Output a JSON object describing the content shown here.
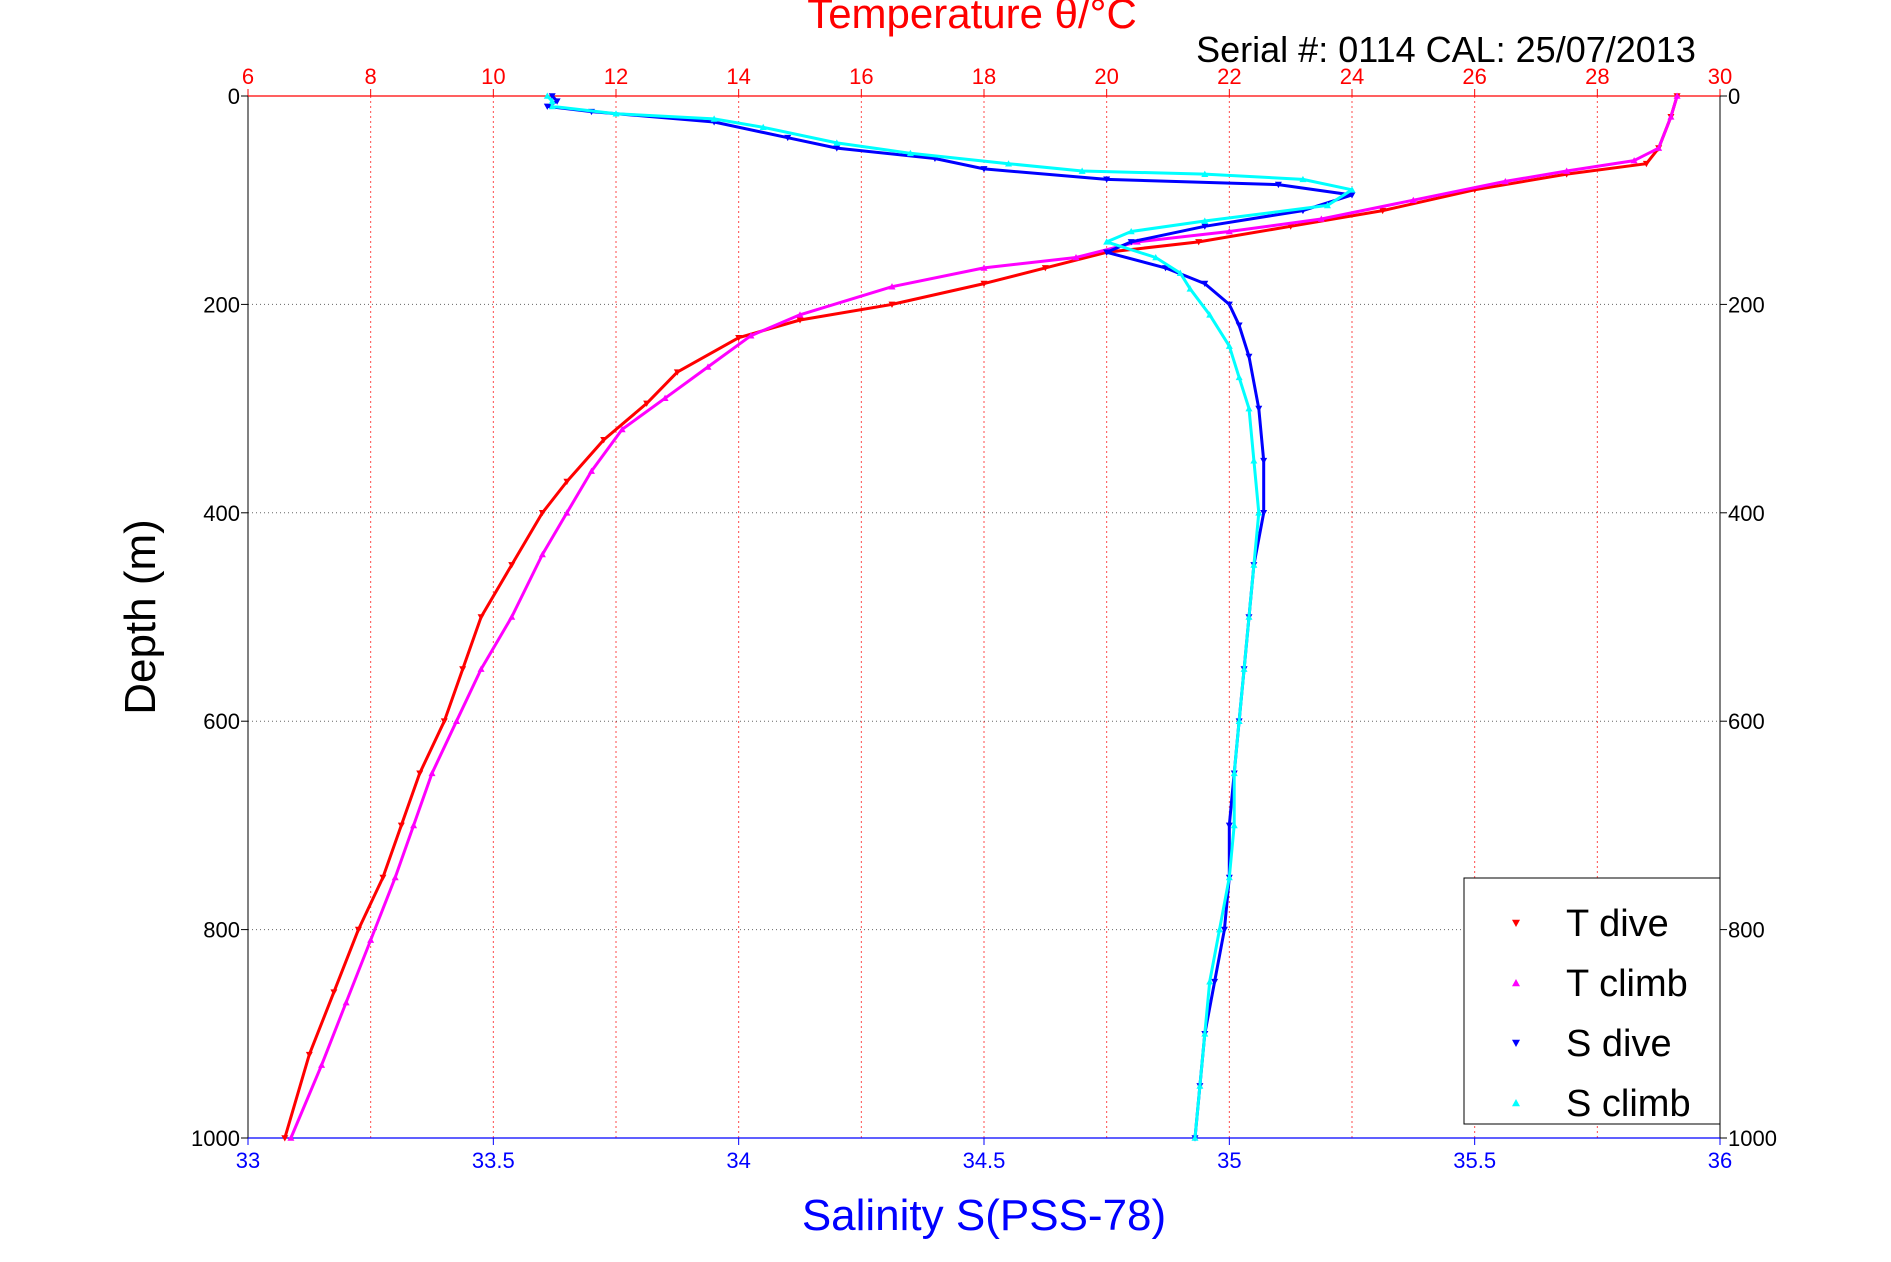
{
  "chart_data": {
    "type": "scatter",
    "title": "Temperature θ/°C",
    "subtitle": "Serial #: 0114  CAL: 25/07/2013",
    "ylabel": "Depth (m)",
    "xlabel": "Salinity S(PSS-78)",
    "ylim": [
      1000,
      0
    ],
    "temperature_axis": {
      "label": "Temperature θ/°C",
      "range": [
        6,
        30
      ],
      "ticks": [
        6,
        8,
        10,
        12,
        14,
        16,
        18,
        20,
        22,
        24,
        26,
        28,
        30
      ],
      "color": "#ff0000"
    },
    "salinity_axis": {
      "label": "Salinity S(PSS-78)",
      "range": [
        33,
        36
      ],
      "ticks": [
        "33",
        "33.5",
        "34",
        "34.5",
        "35",
        "35.5",
        "36"
      ],
      "color": "#0000ff"
    },
    "depth_ticks": [
      0,
      200,
      400,
      600,
      800,
      1000
    ],
    "grid": true,
    "legend_position": "bottom-right",
    "series": [
      {
        "name": "T dive",
        "axis": "temperature",
        "color": "#ff0000",
        "marker": "triangle-down",
        "points": [
          [
            29.3,
            0
          ],
          [
            29.2,
            20
          ],
          [
            29.0,
            50
          ],
          [
            28.8,
            65
          ],
          [
            27.5,
            75
          ],
          [
            26.0,
            90
          ],
          [
            24.5,
            110
          ],
          [
            23.0,
            125
          ],
          [
            21.5,
            140
          ],
          [
            20.0,
            150
          ],
          [
            19.0,
            165
          ],
          [
            18.0,
            180
          ],
          [
            16.5,
            200
          ],
          [
            15.0,
            215
          ],
          [
            14.0,
            232
          ],
          [
            13.0,
            265
          ],
          [
            12.5,
            295
          ],
          [
            11.8,
            330
          ],
          [
            11.2,
            370
          ],
          [
            10.8,
            400
          ],
          [
            10.3,
            450
          ],
          [
            9.8,
            500
          ],
          [
            9.5,
            550
          ],
          [
            9.2,
            600
          ],
          [
            8.8,
            650
          ],
          [
            8.5,
            700
          ],
          [
            8.2,
            750
          ],
          [
            7.8,
            800
          ],
          [
            7.4,
            860
          ],
          [
            7.0,
            920
          ],
          [
            6.6,
            1000
          ]
        ]
      },
      {
        "name": "T climb",
        "axis": "temperature",
        "color": "#ff00ff",
        "marker": "triangle-up",
        "points": [
          [
            29.3,
            0
          ],
          [
            29.2,
            20
          ],
          [
            29.0,
            50
          ],
          [
            28.6,
            62
          ],
          [
            27.5,
            72
          ],
          [
            26.5,
            82
          ],
          [
            25.0,
            100
          ],
          [
            23.5,
            118
          ],
          [
            22.0,
            130
          ],
          [
            20.5,
            140
          ],
          [
            19.5,
            155
          ],
          [
            18.0,
            165
          ],
          [
            16.5,
            183
          ],
          [
            15.0,
            210
          ],
          [
            14.2,
            230
          ],
          [
            13.5,
            260
          ],
          [
            12.8,
            290
          ],
          [
            12.1,
            320
          ],
          [
            11.6,
            360
          ],
          [
            11.2,
            400
          ],
          [
            10.8,
            440
          ],
          [
            10.3,
            500
          ],
          [
            9.8,
            550
          ],
          [
            9.4,
            600
          ],
          [
            9.0,
            650
          ],
          [
            8.7,
            700
          ],
          [
            8.4,
            750
          ],
          [
            8.0,
            810
          ],
          [
            7.6,
            870
          ],
          [
            7.2,
            930
          ],
          [
            6.7,
            1000
          ]
        ]
      },
      {
        "name": "S dive",
        "axis": "salinity",
        "color": "#0000ff",
        "marker": "triangle-down",
        "points": [
          [
            33.62,
            0
          ],
          [
            33.63,
            5
          ],
          [
            33.61,
            10
          ],
          [
            33.7,
            15
          ],
          [
            33.95,
            25
          ],
          [
            34.1,
            40
          ],
          [
            34.2,
            50
          ],
          [
            34.4,
            60
          ],
          [
            34.5,
            70
          ],
          [
            34.75,
            80
          ],
          [
            35.1,
            85
          ],
          [
            35.25,
            95
          ],
          [
            35.15,
            110
          ],
          [
            34.95,
            125
          ],
          [
            34.8,
            140
          ],
          [
            34.75,
            150
          ],
          [
            34.87,
            165
          ],
          [
            34.95,
            180
          ],
          [
            35.0,
            200
          ],
          [
            35.02,
            220
          ],
          [
            35.04,
            250
          ],
          [
            35.06,
            300
          ],
          [
            35.07,
            350
          ],
          [
            35.07,
            400
          ],
          [
            35.05,
            450
          ],
          [
            35.04,
            500
          ],
          [
            35.03,
            550
          ],
          [
            35.02,
            600
          ],
          [
            35.01,
            650
          ],
          [
            35.0,
            700
          ],
          [
            35.0,
            750
          ],
          [
            34.99,
            800
          ],
          [
            34.97,
            850
          ],
          [
            34.95,
            900
          ],
          [
            34.94,
            950
          ],
          [
            34.93,
            1000
          ]
        ]
      },
      {
        "name": "S climb",
        "axis": "salinity",
        "color": "#00ffff",
        "marker": "triangle-up",
        "points": [
          [
            33.61,
            0
          ],
          [
            33.62,
            5
          ],
          [
            33.62,
            10
          ],
          [
            33.75,
            17
          ],
          [
            33.95,
            22
          ],
          [
            34.05,
            30
          ],
          [
            34.2,
            45
          ],
          [
            34.35,
            55
          ],
          [
            34.55,
            65
          ],
          [
            34.7,
            72
          ],
          [
            34.95,
            75
          ],
          [
            35.15,
            80
          ],
          [
            35.25,
            90
          ],
          [
            35.2,
            105
          ],
          [
            34.95,
            120
          ],
          [
            34.8,
            130
          ],
          [
            34.75,
            140
          ],
          [
            34.85,
            155
          ],
          [
            34.9,
            170
          ],
          [
            34.92,
            185
          ],
          [
            34.96,
            210
          ],
          [
            35.0,
            240
          ],
          [
            35.02,
            270
          ],
          [
            35.04,
            300
          ],
          [
            35.05,
            350
          ],
          [
            35.06,
            400
          ],
          [
            35.05,
            450
          ],
          [
            35.04,
            500
          ],
          [
            35.03,
            550
          ],
          [
            35.02,
            600
          ],
          [
            35.01,
            650
          ],
          [
            35.01,
            700
          ],
          [
            35.0,
            750
          ],
          [
            34.98,
            800
          ],
          [
            34.96,
            850
          ],
          [
            34.95,
            900
          ],
          [
            34.94,
            950
          ],
          [
            34.93,
            1000
          ]
        ]
      }
    ]
  }
}
